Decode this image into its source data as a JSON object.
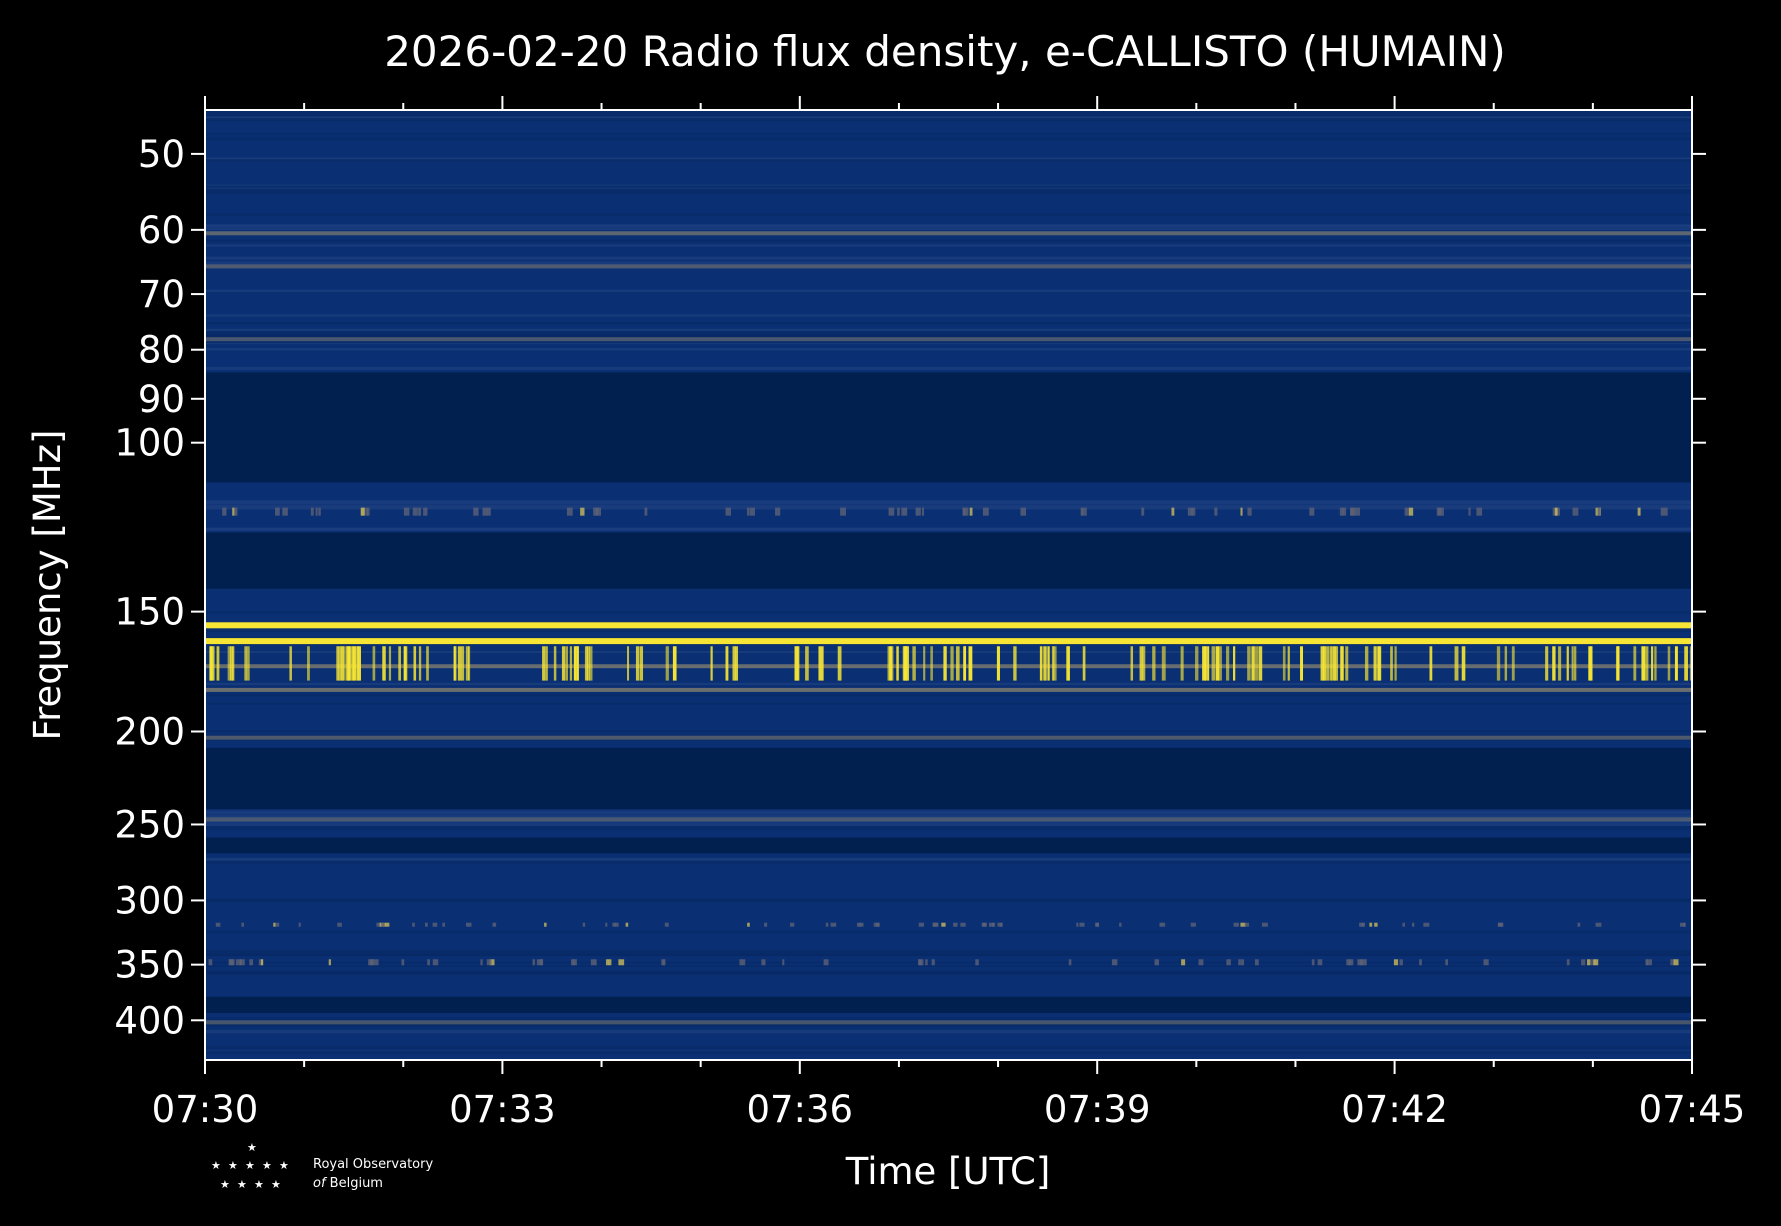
{
  "chart_data": {
    "type": "heatmap",
    "title": "2026-02-20 Radio flux density, e-CALLISTO (HUMAIN)",
    "xlabel": "Time [UTC]",
    "ylabel": "Frequency [MHz]",
    "x_ticks": [
      "07:30",
      "07:33",
      "07:36",
      "07:39",
      "07:42",
      "07:45"
    ],
    "x_range": [
      "07:30",
      "07:45"
    ],
    "y_ticks": [
      50,
      60,
      70,
      80,
      90,
      100,
      150,
      200,
      250,
      300,
      350,
      400
    ],
    "y_range": [
      45,
      440
    ],
    "y_scale": "log",
    "colormap": "cividis",
    "background_color": "#000000",
    "plot_base_color": "#0a2f73",
    "gap_color": "#01204f",
    "highlight_color": "#f6e534",
    "gap_bands_mhz": [
      [
        84.5,
        110
      ],
      [
        124,
        142
      ],
      [
        208,
        241
      ],
      [
        258,
        268
      ],
      [
        378,
        393
      ]
    ],
    "interference_lines_mhz": [
      {
        "freq": 60.5,
        "intensity": 0.45
      },
      {
        "freq": 65.5,
        "intensity": 0.35
      },
      {
        "freq": 78,
        "intensity": 0.3
      },
      {
        "freq": 155,
        "intensity": 1.0
      },
      {
        "freq": 161,
        "intensity": 0.8
      },
      {
        "freq": 171,
        "intensity": 0.55
      },
      {
        "freq": 181,
        "intensity": 0.6
      },
      {
        "freq": 203,
        "intensity": 0.35
      },
      {
        "freq": 247,
        "intensity": 0.3
      },
      {
        "freq": 402,
        "intensity": 0.3
      }
    ]
  },
  "logo": {
    "line1": "Royal Observatory",
    "line2_prefix": "of",
    "line2": "Belgium"
  }
}
